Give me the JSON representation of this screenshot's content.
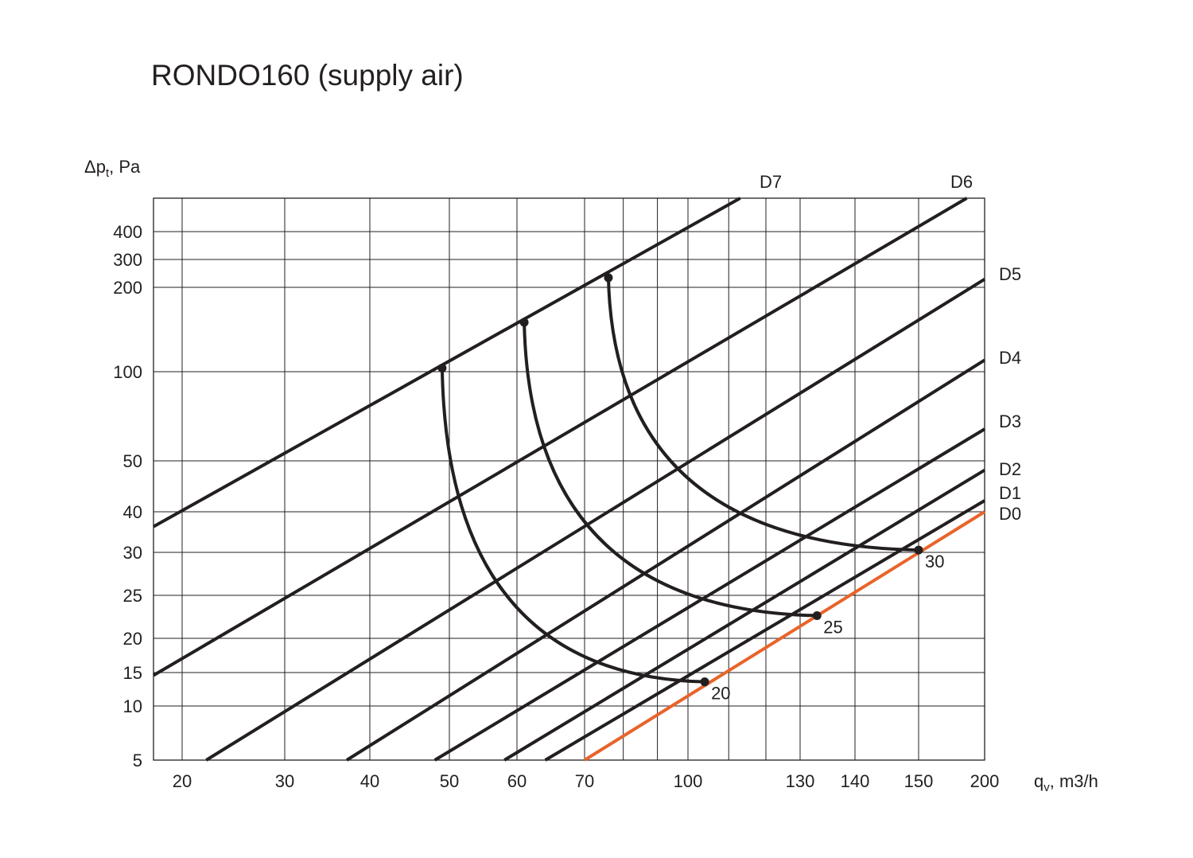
{
  "chart_data": {
    "type": "line",
    "title": "RONDO160 (supply air)",
    "ylabel_main": "Δp",
    "ylabel_sub": "t",
    "ylabel_unit": ", Pa",
    "xlabel_main": "q",
    "xlabel_sub": "v",
    "xlabel_unit": ", m3/h",
    "x_scale": "log",
    "y_scale": "log",
    "grid": true,
    "x_ticks": [
      {
        "value": 20,
        "label": "20"
      },
      {
        "value": 30,
        "label": "30"
      },
      {
        "value": 40,
        "label": "40"
      },
      {
        "value": 50,
        "label": "50"
      },
      {
        "value": 60,
        "label": "60"
      },
      {
        "value": 70,
        "label": "70"
      },
      {
        "value": 100,
        "label": "100"
      },
      {
        "value": 130,
        "label": "130"
      },
      {
        "value": 140,
        "label": "140"
      },
      {
        "value": 150,
        "label": "150"
      },
      {
        "value": 200,
        "label": "200"
      }
    ],
    "y_ticks": [
      {
        "value": 5,
        "label": "5"
      },
      {
        "value": 10,
        "label": "10"
      },
      {
        "value": 15,
        "label": "15"
      },
      {
        "value": 20,
        "label": "20"
      },
      {
        "value": 25,
        "label": "25"
      },
      {
        "value": 30,
        "label": "30"
      },
      {
        "value": 40,
        "label": "40"
      },
      {
        "value": 50,
        "label": "50"
      },
      {
        "value": 100,
        "label": "100"
      },
      {
        "value": 200,
        "label": "200"
      },
      {
        "value": 300,
        "label": "300"
      },
      {
        "value": 400,
        "label": "400"
      }
    ],
    "damper_lines": [
      {
        "name": "D7",
        "color": "#231f20",
        "points": [
          [
            17,
            36
          ],
          [
            113,
            490
          ]
        ]
      },
      {
        "name": "D6",
        "color": "#231f20",
        "points": [
          [
            17,
            14.5
          ],
          [
            185,
            490
          ]
        ]
      },
      {
        "name": "D5",
        "color": "#231f20",
        "points": [
          [
            22,
            5
          ],
          [
            200,
            225
          ]
        ]
      },
      {
        "name": "D4",
        "color": "#231f20",
        "points": [
          [
            37,
            5
          ],
          [
            200,
            110
          ]
        ]
      },
      {
        "name": "D3",
        "color": "#231f20",
        "points": [
          [
            48,
            5
          ],
          [
            200,
            64
          ]
        ]
      },
      {
        "name": "D2",
        "color": "#231f20",
        "points": [
          [
            58,
            5
          ],
          [
            200,
            48
          ]
        ]
      },
      {
        "name": "D1",
        "color": "#231f20",
        "points": [
          [
            64,
            5
          ],
          [
            200,
            42
          ]
        ]
      },
      {
        "name": "D0",
        "color": "#e8642a",
        "points": [
          [
            70,
            5
          ],
          [
            200,
            40
          ]
        ]
      }
    ],
    "throw_curves": [
      {
        "name": "20",
        "color": "#231f20",
        "start": [
          49,
          103
        ],
        "end": [
          104,
          13.4
        ]
      },
      {
        "name": "25",
        "color": "#231f20",
        "start": [
          61,
          150
        ],
        "end": [
          133,
          22.5
        ]
      },
      {
        "name": "30",
        "color": "#231f20",
        "start": [
          76,
          230
        ],
        "end": [
          150,
          30.5
        ]
      }
    ]
  },
  "colors": {
    "ink": "#231f20",
    "accent": "#e8642a"
  }
}
